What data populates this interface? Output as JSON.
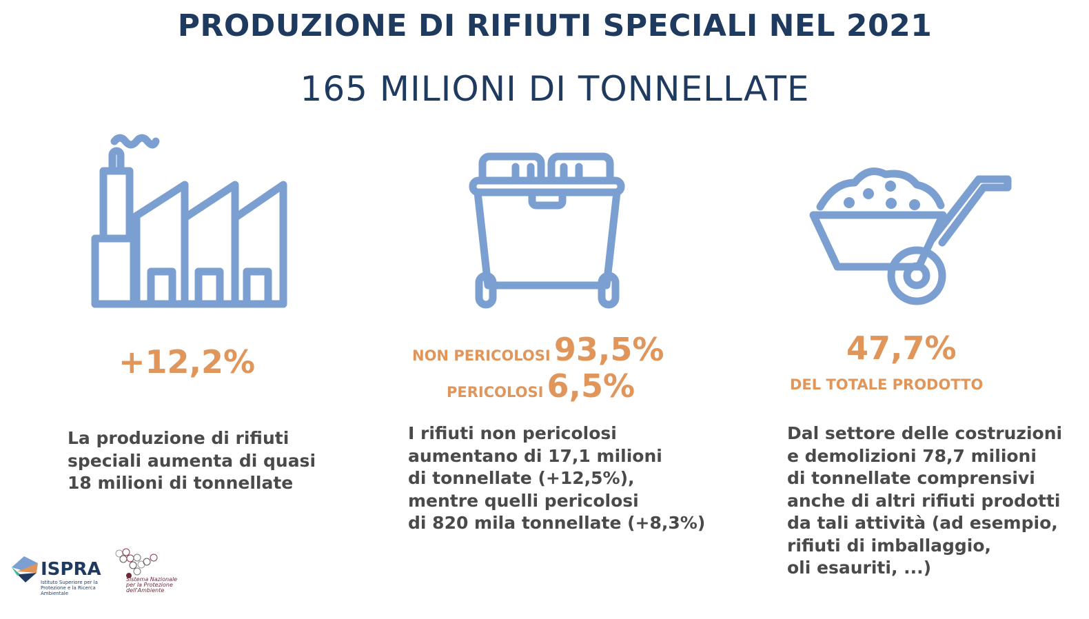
{
  "title": "PRODUZIONE DI RIFIUTI SPECIALI NEL 2021",
  "subtitle": "165 MILIONI DI TONNELLATE",
  "columns": [
    {
      "icon": "factory-icon",
      "stat": "+12,2%",
      "text": "La produzione di rifiuti\nspeciali aumenta di quasi\n18 milioni di tonnellate"
    },
    {
      "icon": "waste-bin-icon",
      "label1": "NON PERICOLOSI",
      "stat1": "93,5%",
      "label2": "PERICOLOSI",
      "stat2": "6,5%",
      "text": "I rifiuti non pericolosi\naumentano di 17,1 milioni\ndi tonnellate (+12,5%),\nmentre quelli pericolosi\ndi 820 mila tonnellate (+8,3%)"
    },
    {
      "icon": "wheelbarrow-icon",
      "stat": "47,7%",
      "label": "DEL TOTALE PRODOTTO",
      "text": "Dal settore delle costruzioni\ne demolizioni 78,7 milioni\ndi tonnellate comprensivi\nanche di altri rifiuti prodotti\nda tali attività (ad esempio,\nrifiuti di imballaggio,\noli esauriti, ...)"
    }
  ],
  "logos": {
    "ispra": "ISPRA",
    "ispra_sub": "Istituto Superiore per la Protezione e la Ricerca Ambientale",
    "snpa": "Sistema Nazionale per la Protezione dell'Ambiente"
  },
  "colors": {
    "title": "#1f3a5f",
    "icon": "#7a9fd0",
    "accent": "#e0955a",
    "text": "#4a4a4a"
  }
}
